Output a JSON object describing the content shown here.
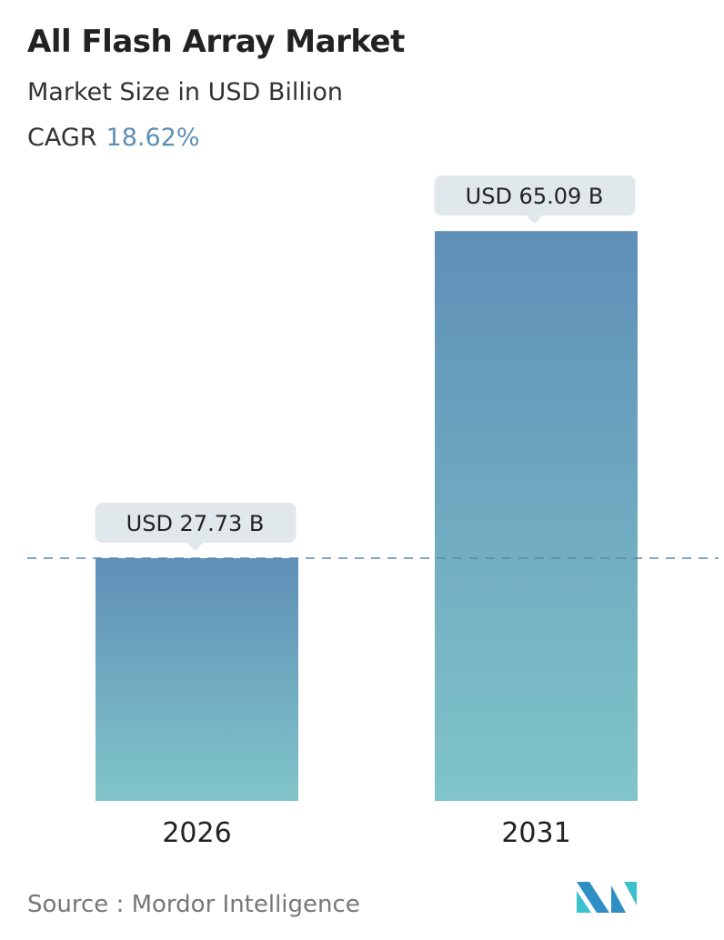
{
  "header": {
    "title": "All Flash Array Market",
    "subtitle": "Market Size in USD Billion",
    "cagr_label": "CAGR",
    "cagr_value": "18.62%"
  },
  "chart_data": {
    "type": "bar",
    "title": "All Flash Array Market",
    "ylabel": "Market Size in USD Billion",
    "categories": [
      "2026",
      "2031"
    ],
    "values": [
      27.73,
      65.09
    ],
    "data_labels": [
      "USD 27.73 B",
      "USD 65.09 B"
    ],
    "reference_line": {
      "value": 27.73,
      "style": "dashed"
    },
    "grid": false,
    "colors": {
      "bar_top": "#5f8fb8",
      "bar_bottom": "#80c5c9",
      "label_bg": "#e1e8ec",
      "accent": "#5d8fb3"
    }
  },
  "footer": {
    "source": "Source :  Mordor Intelligence",
    "logo": "Mordor Intelligence"
  }
}
